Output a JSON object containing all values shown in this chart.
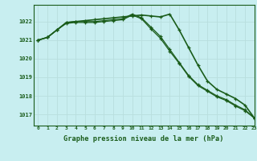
{
  "title": "Graphe pression niveau de la mer (hPa)",
  "background_color": "#c8eef0",
  "grid_color": "#b8dede",
  "line_color": "#1a5c1a",
  "xlim": [
    -0.5,
    23
  ],
  "ylim": [
    1016.4,
    1022.9
  ],
  "yticks": [
    1017,
    1018,
    1019,
    1020,
    1021,
    1022
  ],
  "xtick_labels": [
    "0",
    "1",
    "2",
    "3",
    "4",
    "5",
    "6",
    "7",
    "8",
    "9",
    "10",
    "11",
    "12",
    "13",
    "14",
    "15",
    "16",
    "17",
    "18",
    "19",
    "20",
    "21",
    "22",
    "23"
  ],
  "series": [
    [
      1021.0,
      1021.15,
      1021.55,
      1021.95,
      1022.0,
      1022.05,
      1022.1,
      1022.15,
      1022.2,
      1022.25,
      1022.3,
      1022.35,
      1022.3,
      1022.25,
      1022.4,
      1021.55,
      1020.6,
      1019.65,
      1018.8,
      1018.35,
      1018.1,
      1017.85,
      1017.5,
      1016.8
    ],
    [
      1021.0,
      1021.15,
      1021.55,
      1021.95,
      1022.0,
      1022.0,
      1022.0,
      1022.05,
      1022.1,
      1022.15,
      1022.4,
      1022.2,
      1021.7,
      1021.2,
      1020.5,
      1019.8,
      1019.1,
      1018.6,
      1018.3,
      1018.0,
      1017.8,
      1017.5,
      1017.25,
      1016.8
    ],
    [
      1021.0,
      1021.15,
      1021.55,
      1021.9,
      1021.95,
      1021.95,
      1021.95,
      1022.0,
      1022.05,
      1022.1,
      1022.35,
      1022.15,
      1021.6,
      1021.1,
      1020.4,
      1019.75,
      1019.05,
      1018.55,
      1018.25,
      1017.95,
      1017.75,
      1017.45,
      1017.2,
      1016.8
    ]
  ]
}
